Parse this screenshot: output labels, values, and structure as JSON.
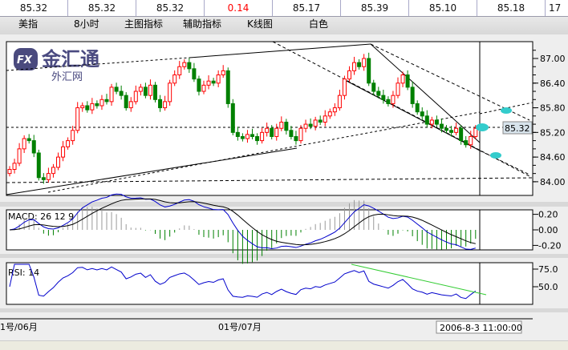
{
  "quotes": [
    "85.32",
    "85.32",
    "85.32",
    "0.14",
    "85.17",
    "85.39",
    "85.10",
    "85.18",
    "17"
  ],
  "quote_highlight_color": "#ff0000",
  "menu": [
    "美指",
    "8小时",
    "主图指标",
    "辅助指标",
    "K线图",
    "白色"
  ],
  "logo": {
    "text": "金汇通",
    "sub": "外汇网",
    "badge": "FX"
  },
  "price_axis": [
    "87.00",
    "86.40",
    "85.80",
    "85.20",
    "84.60",
    "84.00"
  ],
  "current_price": "85.32",
  "macd": {
    "label": "MACD: 26 12 9",
    "axis": [
      "0.20",
      "0.00",
      "-0.20"
    ]
  },
  "rsi": {
    "label": "RSI: 14",
    "axis": [
      "75.0",
      "50.0"
    ]
  },
  "x_axis": [
    "1号/06月",
    "01号/07月"
  ],
  "cursor_time": "2006-8-3 11:00:00",
  "colors": {
    "up": "#ff0000",
    "down": "#008000",
    "macd_line": "#0000cc",
    "signal_line": "#000000",
    "rsi_line": "#0000cc",
    "trend": "#33cc33"
  },
  "chart_data": {
    "type": "candlestick",
    "closes": [
      84.3,
      84.45,
      84.8,
      85.05,
      85.0,
      84.7,
      84.1,
      84.05,
      84.2,
      84.35,
      84.6,
      84.85,
      85.0,
      85.25,
      85.8,
      85.85,
      85.75,
      85.9,
      85.85,
      86.0,
      85.95,
      86.3,
      86.2,
      86.1,
      85.8,
      85.95,
      86.2,
      86.3,
      86.1,
      86.35,
      86.0,
      85.8,
      85.95,
      86.4,
      86.6,
      86.8,
      86.9,
      86.75,
      86.5,
      86.2,
      86.35,
      86.45,
      86.4,
      86.6,
      86.7,
      85.9,
      85.2,
      85.1,
      85.05,
      85.15,
      85.1,
      85.0,
      85.2,
      85.3,
      85.1,
      85.3,
      85.45,
      85.25,
      85.1,
      85.0,
      85.3,
      85.4,
      85.35,
      85.5,
      85.45,
      85.6,
      85.7,
      85.8,
      86.1,
      86.5,
      86.7,
      86.9,
      86.8,
      87.0,
      86.4,
      86.2,
      86.1,
      86.0,
      85.9,
      86.1,
      86.4,
      86.6,
      86.3,
      85.9,
      85.7,
      85.6,
      85.4,
      85.5,
      85.4,
      85.3,
      85.25,
      85.2,
      85.3,
      85.0,
      84.9,
      85.1,
      85.3
    ],
    "ylim": [
      84.0,
      87.0
    ]
  }
}
